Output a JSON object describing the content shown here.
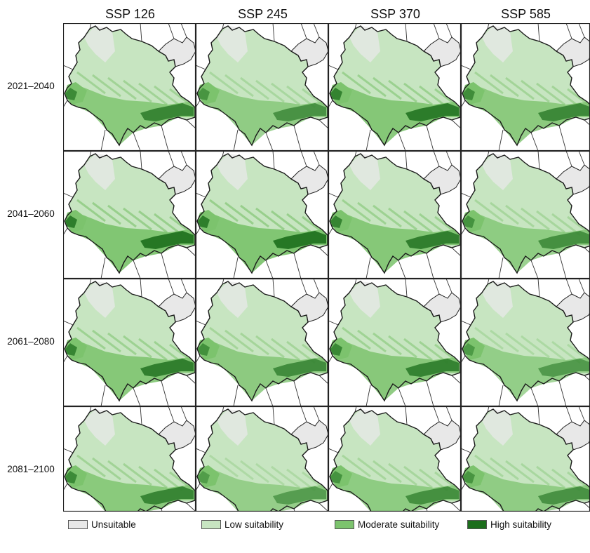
{
  "columns": [
    "SSP 126",
    "SSP 245",
    "SSP 370",
    "SSP 585"
  ],
  "rows": [
    "2021–2040",
    "2041–2060",
    "2061–2080",
    "2081–2100"
  ],
  "legend": [
    {
      "label": "Unsuitable",
      "color": "#e8e8e8"
    },
    {
      "label": "Low suitability",
      "color": "#c7e5c1"
    },
    {
      "label": "Moderate suitability",
      "color": "#7cc36d"
    },
    {
      "label": "High suitability",
      "color": "#1c6e1c"
    }
  ],
  "panels_high_level": [
    [
      0.6,
      0.4,
      0.75,
      0.55
    ],
    [
      0.85,
      0.85,
      0.7,
      0.45
    ],
    [
      0.7,
      0.5,
      0.65,
      0.3
    ],
    [
      0.6,
      0.25,
      0.45,
      0.4
    ]
  ]
}
